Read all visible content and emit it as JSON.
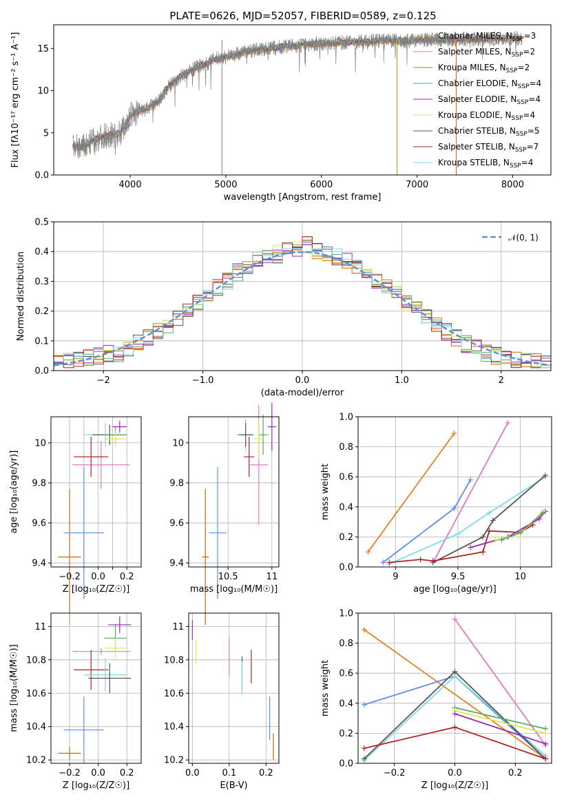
{
  "title": "PLATE=0626, MJD=52057, FIBERID=0589, z=0.125",
  "colors": {
    "Chabrier MILES": "#4c72b0",
    "Salpeter MILES": "#d95f02",
    "Kroupa MILES": "#b8860b",
    "Chabrier ELODIE": "#55a868",
    "Salpeter ELODIE": "#9c27b0",
    "Kroupa ELODIE": "#e6e64c",
    "Chabrier STELIB": "#555555",
    "Salpeter STELIB": "#b22222",
    "Kroupa STELIB": "#7fd8e6"
  },
  "chart_data": [
    {
      "id": "spectrum",
      "type": "line",
      "xlabel": "wavelength [Angstrom, rest frame]",
      "ylabel": "Flux [fλ10⁻¹⁷ erg cm⁻² s⁻¹ A⁻¹]",
      "xlim": [
        3200,
        8400
      ],
      "ylim": [
        0,
        17.8
      ],
      "xticks": [
        4000,
        5000,
        6000,
        7000,
        8000
      ],
      "yticks": [
        0,
        5,
        10,
        15
      ],
      "grid": false,
      "legend_position": "upper right",
      "series": [
        {
          "name": "Chabrier MILES, N_SSP=3",
          "color": "#f5a623"
        },
        {
          "name": "Salpeter MILES, N_SSP=2",
          "color": "#e377c2"
        },
        {
          "name": "Kroupa MILES, N_SSP=2",
          "color": "#b8860b"
        },
        {
          "name": "Chabrier ELODIE, N_SSP=4",
          "color": "#55a868"
        },
        {
          "name": "Salpeter ELODIE, N_SSP=4",
          "color": "#9c27b0"
        },
        {
          "name": "Kroupa ELODIE, N_SSP=4",
          "color": "#e6e64c"
        },
        {
          "name": "Chabrier STELIB, N_SSP=5",
          "color": "#555555"
        },
        {
          "name": "Salpeter STELIB, N_SSP=7",
          "color": "#b22222"
        },
        {
          "name": "Kroupa STELIB, N_SSP=4",
          "color": "#7fd8e6"
        }
      ],
      "observed_envelope": {
        "x": [
          3400,
          3500,
          3600,
          3700,
          3800,
          3900,
          4000,
          4100,
          4200,
          4300,
          4400,
          4500,
          4600,
          4700,
          4800,
          4900,
          5000,
          5100,
          5200,
          5300,
          5400,
          5500,
          5600,
          5700,
          5800,
          5900,
          6000,
          6100,
          6200,
          6300,
          6400,
          6500,
          6600,
          6700,
          6800,
          6900,
          7000,
          7100,
          7200,
          7300,
          7400,
          7500,
          7600,
          7700,
          7800,
          7900,
          8000,
          8100
        ],
        "y": [
          3.5,
          3.2,
          4.0,
          4.5,
          4.8,
          5.0,
          7.0,
          7.6,
          8.0,
          8.8,
          10.5,
          11.5,
          12.2,
          12.8,
          13.2,
          13.8,
          14.0,
          14.3,
          14.6,
          14.8,
          14.9,
          15.0,
          15.2,
          15.3,
          15.4,
          15.5,
          15.6,
          15.6,
          15.7,
          15.7,
          15.8,
          15.8,
          15.9,
          15.9,
          15.9,
          15.9,
          16.0,
          16.0,
          16.0,
          16.0,
          16.1,
          16.1,
          16.1,
          16.1,
          16.2,
          16.2,
          16.2,
          16.2
        ]
      },
      "spikes_x": [
        4960,
        6790,
        7410
      ]
    },
    {
      "id": "residuals",
      "type": "histogram",
      "xlabel": "(data-model)/error",
      "ylabel": "Normed distribution",
      "xlim": [
        -2.5,
        2.5
      ],
      "ylim": [
        0,
        0.5
      ],
      "xticks": [
        -2,
        -1,
        0,
        1,
        2
      ],
      "yticks": [
        0.0,
        0.1,
        0.2,
        0.3,
        0.4,
        0.5
      ],
      "grid": true,
      "legend": "𝒩(0, 1)",
      "bins": [
        -2.5,
        -2.4,
        -2.3,
        -2.2,
        -2.1,
        -2.0,
        -1.9,
        -1.8,
        -1.7,
        -1.6,
        -1.5,
        -1.4,
        -1.3,
        -1.2,
        -1.1,
        -1.0,
        -0.9,
        -0.8,
        -0.7,
        -0.6,
        -0.5,
        -0.4,
        -0.3,
        -0.2,
        -0.1,
        0.0,
        0.1,
        0.2,
        0.3,
        0.4,
        0.5,
        0.6,
        0.7,
        0.8,
        0.9,
        1.0,
        1.1,
        1.2,
        1.3,
        1.4,
        1.5,
        1.6,
        1.7,
        1.8,
        1.9,
        2.0,
        2.1,
        2.2,
        2.3,
        2.4
      ],
      "hist_values": [
        0.025,
        0.03,
        0.035,
        0.04,
        0.05,
        0.055,
        0.06,
        0.075,
        0.09,
        0.11,
        0.13,
        0.155,
        0.18,
        0.205,
        0.23,
        0.255,
        0.28,
        0.3,
        0.33,
        0.35,
        0.37,
        0.38,
        0.39,
        0.4,
        0.41,
        0.42,
        0.4,
        0.395,
        0.38,
        0.37,
        0.35,
        0.33,
        0.3,
        0.28,
        0.255,
        0.23,
        0.205,
        0.18,
        0.155,
        0.13,
        0.11,
        0.09,
        0.075,
        0.06,
        0.05,
        0.04,
        0.035,
        0.03,
        0.028,
        0.025
      ]
    },
    {
      "id": "age-Z",
      "type": "errorbar",
      "xlabel": "Z [log₁₀(Z/Z☉)]",
      "ylabel": "age  [log₁₀(age/yr)]",
      "xlim": [
        -0.33,
        0.3
      ],
      "ylim": [
        9.38,
        10.13
      ],
      "xticks": [
        -0.2,
        -0.1,
        0.0,
        0.1,
        0.2
      ],
      "xticklabels": [
        "−0.2",
        "",
        "0.0",
        "",
        "0.2"
      ],
      "xticks_major": [
        -0.25,
        0.0,
        0.25
      ],
      "yticks": [
        9.4,
        9.6,
        9.8,
        10.0
      ],
      "grid": true,
      "points": [
        {
          "series": "Salpeter MILES",
          "x": -0.2,
          "y": 9.43,
          "xerr": 0.08,
          "yerr": 0.34,
          "color": "#d95f02"
        },
        {
          "series": "Chabrier MILES",
          "x": -0.1,
          "y": 9.55,
          "xerr": 0.14,
          "yerr": 0.33,
          "color": "#5b8def"
        },
        {
          "series": "Kroupa MILES",
          "x": 0.02,
          "y": 9.89,
          "xerr": 0.2,
          "yerr": 0.12,
          "color": "#e377c2"
        },
        {
          "series": "Salpeter STELIB",
          "x": -0.05,
          "y": 9.93,
          "xerr": 0.12,
          "yerr": 0.1,
          "color": "#b22222"
        },
        {
          "series": "Kroupa STELIB",
          "x": 0.05,
          "y": 10.04,
          "xerr": 0.15,
          "yerr": 0.06,
          "color": "#7fd8e6"
        },
        {
          "series": "Chabrier STELIB",
          "x": 0.08,
          "y": 10.04,
          "xerr": 0.12,
          "yerr": 0.05,
          "color": "#555555"
        },
        {
          "series": "Chabrier ELODIE",
          "x": 0.12,
          "y": 10.04,
          "xerr": 0.08,
          "yerr": 0.04,
          "color": "#55a868"
        },
        {
          "series": "Salpeter ELODIE",
          "x": 0.15,
          "y": 10.08,
          "xerr": 0.05,
          "yerr": 0.03,
          "color": "#9c27b0"
        },
        {
          "series": "Kroupa ELODIE",
          "x": 0.12,
          "y": 10.02,
          "xerr": 0.07,
          "yerr": 0.04,
          "color": "#e6e64c"
        }
      ]
    },
    {
      "id": "age-mass",
      "type": "errorbar",
      "xlabel": "mass [log₁₀(M/M☉)]",
      "ylabel": "",
      "xlim": [
        10.05,
        11.08
      ],
      "ylim": [
        9.38,
        10.13
      ],
      "xticks": [
        10.5,
        11.0
      ],
      "yticks": [
        9.4,
        9.6,
        9.8,
        10.0
      ],
      "grid": true,
      "points": [
        {
          "series": "Salpeter MILES",
          "x": 10.24,
          "y": 9.43,
          "xerr": 0.04,
          "yerr": 0.34,
          "color": "#d95f02"
        },
        {
          "series": "Chabrier MILES",
          "x": 10.38,
          "y": 9.55,
          "xerr": 0.1,
          "yerr": 0.33,
          "color": "#5b8def"
        },
        {
          "series": "Kroupa MILES",
          "x": 10.85,
          "y": 9.89,
          "xerr": 0.1,
          "yerr": 0.3,
          "color": "#e377c2"
        },
        {
          "series": "Salpeter STELIB",
          "x": 10.74,
          "y": 9.93,
          "xerr": 0.06,
          "yerr": 0.1,
          "color": "#b22222"
        },
        {
          "series": "Kroupa STELIB",
          "x": 10.7,
          "y": 10.04,
          "xerr": 0.1,
          "yerr": 0.08,
          "color": "#7fd8e6"
        },
        {
          "series": "Chabrier STELIB",
          "x": 10.7,
          "y": 10.04,
          "xerr": 0.08,
          "yerr": 0.06,
          "color": "#555555"
        },
        {
          "series": "Chabrier ELODIE",
          "x": 10.9,
          "y": 10.04,
          "xerr": 0.06,
          "yerr": 0.1,
          "color": "#55a868"
        },
        {
          "series": "Salpeter ELODIE",
          "x": 11.0,
          "y": 10.08,
          "xerr": 0.05,
          "yerr": 0.12,
          "color": "#9c27b0"
        },
        {
          "series": "Kroupa ELODIE",
          "x": 10.85,
          "y": 10.02,
          "xerr": 0.05,
          "yerr": 0.1,
          "color": "#e6e64c"
        }
      ]
    },
    {
      "id": "mw-age",
      "type": "line",
      "xlabel": "age  [log₁₀(age/yr)]",
      "ylabel": "mass weight",
      "xlim": [
        8.7,
        10.25
      ],
      "ylim": [
        0,
        1.0
      ],
      "xticks": [
        9.0,
        9.5,
        10.0
      ],
      "yticks": [
        0.0,
        0.2,
        0.4,
        0.6,
        0.8,
        1.0
      ],
      "grid": true,
      "series": [
        {
          "name": "Salpeter MILES",
          "color": "#e67e22",
          "x": [
            8.78,
            9.47
          ],
          "y": [
            0.1,
            0.89
          ]
        },
        {
          "name": "Chabrier MILES",
          "color": "#5b8def",
          "x": [
            8.9,
            9.47,
            9.6
          ],
          "y": [
            0.03,
            0.39,
            0.58
          ]
        },
        {
          "name": "Kroupa MILES",
          "color": "#e377c2",
          "x": [
            9.3,
            9.9
          ],
          "y": [
            0.03,
            0.96
          ]
        },
        {
          "name": "Kroupa STELIB",
          "color": "#7fd8e6",
          "x": [
            8.95,
            9.5,
            9.75,
            10.2
          ],
          "y": [
            0.02,
            0.22,
            0.36,
            0.6
          ]
        },
        {
          "name": "Chabrier STELIB",
          "color": "#555555",
          "x": [
            9.3,
            9.7,
            9.78,
            10.2
          ],
          "y": [
            0.03,
            0.2,
            0.31,
            0.61
          ]
        },
        {
          "name": "Salpeter STELIB",
          "color": "#b22222",
          "x": [
            8.95,
            9.2,
            9.3,
            9.7,
            9.75,
            10.0,
            10.1
          ],
          "y": [
            0.03,
            0.05,
            0.04,
            0.1,
            0.24,
            0.23,
            0.28
          ]
        },
        {
          "name": "Salpeter ELODIE",
          "color": "#9c27b0",
          "x": [
            9.6,
            9.9,
            10.15,
            10.2
          ],
          "y": [
            0.13,
            0.2,
            0.32,
            0.37
          ]
        },
        {
          "name": "Kroupa ELODIE",
          "color": "#e6e64c",
          "x": [
            9.8,
            10.0,
            10.18
          ],
          "y": [
            0.18,
            0.22,
            0.37
          ]
        },
        {
          "name": "Chabrier ELODIE",
          "color": "#55a868",
          "x": [
            9.85,
            10.0,
            10.18
          ],
          "y": [
            0.18,
            0.23,
            0.36
          ]
        }
      ]
    },
    {
      "id": "mass-Z",
      "type": "errorbar",
      "xlabel": "Z [log₁₀(Z/Z☉)]",
      "ylabel": "mass [log₁₀(M/M☉)]",
      "xlim": [
        -0.33,
        0.3
      ],
      "ylim": [
        10.18,
        11.08
      ],
      "xticks": [
        -0.2,
        0.0,
        0.2
      ],
      "yticks": [
        10.2,
        10.4,
        10.6,
        10.8,
        11.0
      ],
      "grid": true,
      "points": [
        {
          "series": "Salpeter MILES",
          "x": -0.2,
          "y": 10.24,
          "xerr": 0.08,
          "yerr": 0.04,
          "color": "#d95f02"
        },
        {
          "series": "Chabrier MILES",
          "x": -0.1,
          "y": 10.38,
          "xerr": 0.14,
          "yerr": 0.2,
          "color": "#5b8def"
        },
        {
          "series": "Kroupa MILES",
          "x": 0.02,
          "y": 10.85,
          "xerr": 0.2,
          "yerr": 0.02,
          "color": "#e377c2"
        },
        {
          "series": "Salpeter STELIB",
          "x": -0.05,
          "y": 10.74,
          "xerr": 0.12,
          "yerr": 0.12,
          "color": "#b22222"
        },
        {
          "series": "Kroupa STELIB",
          "x": 0.05,
          "y": 10.71,
          "xerr": 0.15,
          "yerr": 0.1,
          "color": "#7fd8e6"
        },
        {
          "series": "Chabrier STELIB",
          "x": 0.08,
          "y": 10.69,
          "xerr": 0.15,
          "yerr": 0.09,
          "color": "#555555"
        },
        {
          "series": "Chabrier ELODIE",
          "x": 0.12,
          "y": 10.93,
          "xerr": 0.08,
          "yerr": 0.08,
          "color": "#55a868"
        },
        {
          "series": "Salpeter ELODIE",
          "x": 0.15,
          "y": 11.01,
          "xerr": 0.08,
          "yerr": 0.05,
          "color": "#9c27b0"
        },
        {
          "series": "Kroupa ELODIE",
          "x": 0.12,
          "y": 10.87,
          "xerr": 0.07,
          "yerr": 0.06,
          "color": "#e6e64c"
        }
      ]
    },
    {
      "id": "mass-ebv",
      "type": "errorbar",
      "xlabel": "E(B-V)",
      "ylabel": "",
      "xlim": [
        -0.01,
        0.235
      ],
      "ylim": [
        10.18,
        11.08
      ],
      "xticks": [
        0.0,
        0.1,
        0.2
      ],
      "yticks": [
        10.2,
        10.4,
        10.6,
        10.8,
        11.0
      ],
      "grid": true,
      "points": [
        {
          "series": "Salpeter ELODIE",
          "x": 0.0,
          "y": 10.98,
          "yerr": 0.06,
          "color": "#9c27b0"
        },
        {
          "series": "Kroupa ELODIE",
          "x": 0.01,
          "y": 10.85,
          "yerr": 0.07,
          "color": "#e6e64c"
        },
        {
          "series": "Kroupa MILES",
          "x": 0.1,
          "y": 10.82,
          "yerr": 0.11,
          "color": "#e377c2"
        },
        {
          "series": "Chabrier STELIB",
          "x": 0.135,
          "y": 10.72,
          "yerr": 0.1,
          "color": "#555555"
        },
        {
          "series": "Kroupa STELIB",
          "x": 0.135,
          "y": 10.69,
          "yerr": 0.1,
          "color": "#7fd8e6"
        },
        {
          "series": "Salpeter STELIB",
          "x": 0.16,
          "y": 10.76,
          "yerr": 0.1,
          "color": "#b22222"
        },
        {
          "series": "Chabrier MILES",
          "x": 0.21,
          "y": 10.45,
          "yerr": 0.13,
          "color": "#5b8def"
        },
        {
          "series": "Salpeter MILES",
          "x": 0.22,
          "y": 10.28,
          "yerr": 0.08,
          "color": "#d95f02"
        }
      ]
    },
    {
      "id": "mw-Z",
      "type": "line",
      "xlabel": "Z [log₁₀(Z/Z☉)]",
      "ylabel": "mass weight",
      "xlim": [
        -0.32,
        0.32
      ],
      "ylim": [
        0,
        1.0
      ],
      "xticks": [
        -0.2,
        0.0,
        0.2
      ],
      "yticks": [
        0.0,
        0.2,
        0.4,
        0.6,
        0.8,
        1.0
      ],
      "grid": true,
      "series": [
        {
          "name": "Salpeter MILES",
          "color": "#e67e22",
          "x": [
            -0.3,
            0.3
          ],
          "y": [
            0.89,
            0.03
          ]
        },
        {
          "name": "Kroupa MILES",
          "color": "#e377c2",
          "x": [
            0.0,
            0.3
          ],
          "y": [
            0.96,
            0.12
          ]
        },
        {
          "name": "Chabrier MILES",
          "color": "#5b8def",
          "x": [
            -0.3,
            0.0,
            0.3
          ],
          "y": [
            0.39,
            0.58,
            0.03
          ]
        },
        {
          "name": "Kroupa STELIB",
          "color": "#7fd8e6",
          "x": [
            -0.3,
            0.0,
            0.3
          ],
          "y": [
            0.02,
            0.58,
            0.05
          ]
        },
        {
          "name": "Chabrier STELIB",
          "color": "#555555",
          "x": [
            -0.3,
            0.0,
            0.3
          ],
          "y": [
            0.03,
            0.61,
            0.03
          ]
        },
        {
          "name": "Salpeter STELIB",
          "color": "#b22222",
          "x": [
            -0.3,
            0.0,
            0.3
          ],
          "y": [
            0.1,
            0.24,
            0.03
          ]
        },
        {
          "name": "Chabrier ELODIE",
          "color": "#55a868",
          "x": [
            0.0,
            0.3
          ],
          "y": [
            0.37,
            0.23
          ]
        },
        {
          "name": "Kroupa ELODIE",
          "color": "#e6e64c",
          "x": [
            0.0,
            0.3
          ],
          "y": [
            0.35,
            0.2
          ]
        },
        {
          "name": "Salpeter ELODIE",
          "color": "#9c27b0",
          "x": [
            0.0,
            0.3
          ],
          "y": [
            0.33,
            0.13
          ]
        }
      ]
    }
  ]
}
